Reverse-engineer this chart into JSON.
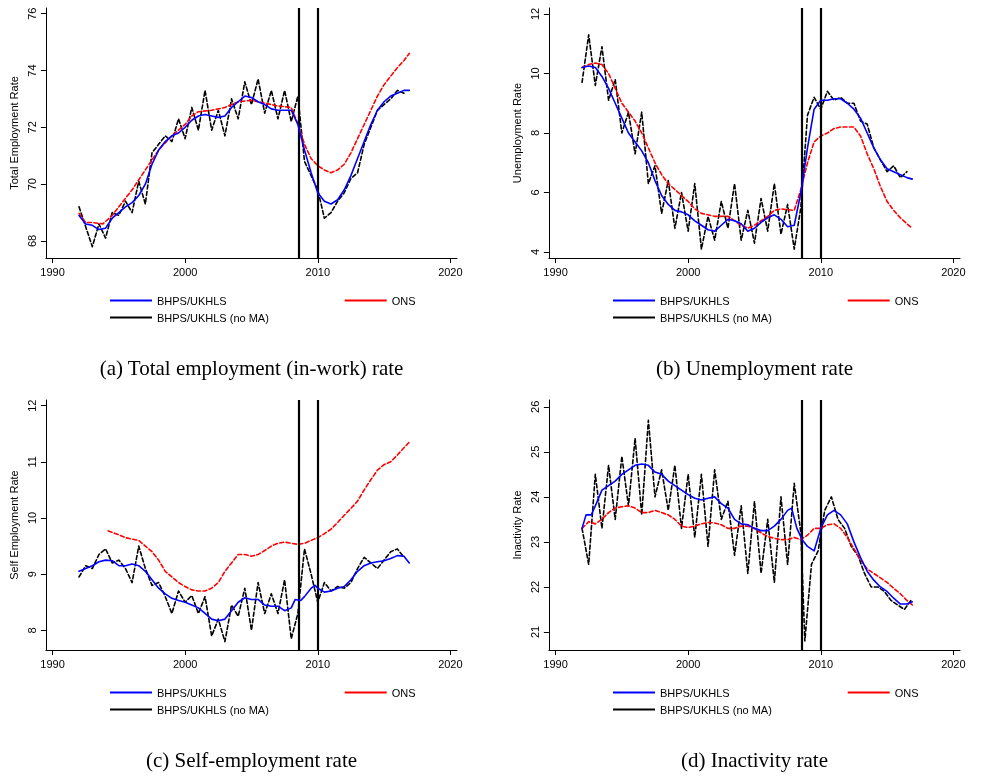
{
  "chart_data": [
    {
      "type": "line",
      "title": "(a) Total employment (in-work) rate",
      "ylabel": "Total Employment Rate",
      "xlim": [
        1989.5,
        2020.5
      ],
      "xticks": [
        1990,
        2000,
        2010,
        2020
      ],
      "ylim": [
        67.4,
        76.2
      ],
      "yticks": [
        68,
        70,
        72,
        74,
        76
      ],
      "grid": false,
      "legend": "bottom",
      "marker": "none",
      "ref_lines": [
        {
          "axis": "x",
          "value": 2008.6,
          "color": "#000000"
        },
        {
          "axis": "x",
          "value": 2010,
          "color": "#000000"
        }
      ],
      "series": [
        {
          "name": "BHPS/UKHLS",
          "color": "#0000ff",
          "line_style": "solid",
          "x": [
            1992,
            1992.5,
            1993,
            1993.5,
            1994,
            1994.5,
            1995,
            1995.5,
            1996,
            1996.5,
            1997,
            1997.5,
            1998,
            1998.5,
            1999,
            1999.5,
            2000,
            2000.5,
            2001,
            2001.5,
            2002,
            2002.5,
            2003,
            2003.5,
            2004,
            2004.5,
            2005,
            2005.5,
            2006,
            2006.5,
            2007,
            2007.5,
            2008,
            2008.5,
            2009,
            2009.5,
            2010,
            2010.5,
            2011,
            2011.5,
            2012,
            2012.5,
            2013,
            2013.5,
            2014,
            2014.5,
            2015,
            2015.5,
            2016,
            2016.5,
            2016.9
          ],
          "values": [
            68.9,
            68.6,
            68.55,
            68.4,
            68.45,
            68.8,
            69.0,
            69.2,
            69.35,
            69.6,
            70.0,
            70.7,
            71.2,
            71.5,
            71.7,
            71.8,
            72.0,
            72.25,
            72.4,
            72.45,
            72.4,
            72.35,
            72.4,
            72.7,
            72.9,
            73.1,
            73.05,
            72.9,
            72.8,
            72.65,
            72.6,
            72.6,
            72.6,
            72.1,
            71.2,
            70.4,
            69.7,
            69.4,
            69.3,
            69.45,
            69.8,
            70.3,
            70.9,
            71.5,
            72.1,
            72.6,
            72.9,
            73.1,
            73.2,
            73.3,
            73.3
          ]
        },
        {
          "name": "ONS",
          "color": "#ff0000",
          "line_style": "dashed",
          "x": [
            1992,
            1992.5,
            1993,
            1993.8,
            1994.5,
            1995,
            1996,
            1997,
            1998,
            1999,
            2000,
            2000.5,
            2001,
            2002,
            2003,
            2004,
            2005,
            2006,
            2007,
            2008,
            2008.6,
            2009,
            2009.5,
            2010,
            2010.5,
            2011,
            2011.5,
            2012,
            2012.5,
            2013,
            2013.5,
            2014,
            2014.5,
            2015,
            2015.5,
            2016,
            2016.5,
            2016.9
          ],
          "values": [
            68.97,
            68.65,
            68.65,
            68.6,
            68.9,
            69.2,
            69.8,
            70.5,
            71.2,
            71.7,
            72.1,
            72.4,
            72.55,
            72.6,
            72.7,
            72.9,
            72.95,
            72.85,
            72.75,
            72.7,
            72.0,
            71.4,
            70.9,
            70.65,
            70.5,
            70.4,
            70.5,
            70.7,
            71.1,
            71.6,
            72.1,
            72.6,
            73.1,
            73.5,
            73.8,
            74.1,
            74.35,
            74.6
          ]
        },
        {
          "name": "BHPS/UKHLS (no MA)",
          "color": "#000000",
          "line_style": "dashed",
          "x": [
            1992,
            1992.5,
            1993,
            1993.5,
            1994,
            1994.5,
            1995,
            1995.5,
            1996,
            1996.5,
            1997,
            1997.5,
            1998,
            1998.5,
            1999,
            1999.5,
            2000,
            2000.5,
            2001,
            2001.5,
            2002,
            2002.5,
            2003,
            2003.5,
            2004,
            2004.5,
            2005,
            2005.5,
            2006,
            2006.5,
            2007,
            2007.5,
            2008,
            2008.5,
            2009,
            2009.5,
            2010,
            2010.5,
            2011,
            2011.5,
            2012,
            2012.5,
            2013,
            2013.5,
            2014,
            2014.5,
            2015,
            2015.5,
            2016,
            2016.5
          ],
          "values": [
            69.2,
            68.5,
            67.8,
            68.6,
            68.1,
            69.0,
            68.9,
            69.4,
            69.0,
            70.1,
            69.3,
            71.1,
            71.4,
            71.7,
            71.5,
            72.3,
            71.6,
            72.7,
            71.9,
            73.3,
            71.9,
            72.6,
            71.7,
            73.0,
            72.3,
            73.6,
            72.8,
            73.7,
            72.5,
            73.3,
            72.3,
            73.3,
            72.2,
            73.1,
            70.8,
            70.3,
            69.8,
            68.8,
            69.0,
            69.4,
            69.7,
            70.2,
            70.4,
            71.4,
            72.0,
            72.6,
            72.8,
            73.0,
            73.3,
            73.2
          ]
        }
      ]
    },
    {
      "type": "line",
      "title": "(b) Unemployment rate",
      "ylabel": "Unemployment Rate",
      "xlim": [
        1989.5,
        2020.5
      ],
      "xticks": [
        1990,
        2000,
        2010,
        2020
      ],
      "ylim": [
        3.8,
        12.2
      ],
      "yticks": [
        4,
        6,
        8,
        10,
        12
      ],
      "grid": false,
      "legend": "bottom",
      "marker": "none",
      "ref_lines": [
        {
          "axis": "x",
          "value": 2008.6,
          "color": "#000000"
        },
        {
          "axis": "x",
          "value": 2010,
          "color": "#000000"
        }
      ],
      "series": [
        {
          "name": "BHPS/UKHLS",
          "color": "#0000ff",
          "line_style": "solid",
          "x": [
            1992,
            1992.5,
            1993,
            1993.5,
            1994,
            1994.5,
            1995,
            1995.5,
            1996,
            1996.5,
            1997,
            1997.5,
            1998,
            1998.5,
            1999,
            1999.5,
            2000,
            2000.5,
            2001,
            2001.5,
            2002,
            2002.5,
            2003,
            2003.5,
            2004,
            2004.5,
            2005,
            2005.5,
            2006,
            2006.5,
            2007,
            2007.5,
            2008,
            2008.5,
            2009,
            2009.5,
            2010,
            2010.5,
            2011,
            2011.5,
            2012,
            2012.5,
            2013,
            2013.5,
            2014,
            2014.5,
            2015,
            2015.5,
            2016,
            2016.5,
            2016.9
          ],
          "values": [
            10.2,
            10.25,
            10.2,
            9.9,
            9.5,
            9.0,
            8.5,
            8.0,
            7.7,
            7.4,
            7.0,
            6.4,
            5.9,
            5.6,
            5.4,
            5.35,
            5.25,
            5.05,
            4.9,
            4.75,
            4.7,
            4.9,
            5.1,
            5.05,
            4.95,
            4.7,
            4.8,
            5.0,
            5.15,
            5.25,
            5.1,
            4.85,
            4.9,
            6.0,
            7.5,
            8.8,
            9.1,
            9.1,
            9.15,
            9.15,
            9.0,
            8.8,
            8.5,
            8.0,
            7.5,
            7.1,
            6.8,
            6.7,
            6.6,
            6.5,
            6.45
          ]
        },
        {
          "name": "ONS",
          "color": "#ff0000",
          "line_style": "dashed",
          "x": [
            1992,
            1992.5,
            1993,
            1993.5,
            1994,
            1994.5,
            1995,
            1995.5,
            1996,
            1996.5,
            1997,
            1997.5,
            1998,
            1998.5,
            1999,
            1999.5,
            2000,
            2000.5,
            2001,
            2002,
            2003,
            2004,
            2004.5,
            2005,
            2006,
            2006.5,
            2007,
            2008,
            2008.5,
            2009,
            2009.5,
            2010,
            2010.5,
            2011,
            2011.5,
            2012,
            2012.5,
            2013,
            2013.5,
            2014,
            2014.5,
            2015,
            2015.5,
            2016,
            2016.5,
            2016.9
          ],
          "values": [
            10.2,
            10.3,
            10.35,
            10.3,
            10.0,
            9.5,
            9.0,
            8.7,
            8.4,
            8.0,
            7.5,
            7.0,
            6.6,
            6.3,
            6.1,
            5.9,
            5.7,
            5.45,
            5.3,
            5.2,
            5.2,
            4.9,
            4.8,
            4.9,
            5.2,
            5.4,
            5.45,
            5.4,
            6.1,
            7.0,
            7.7,
            7.9,
            8.0,
            8.15,
            8.2,
            8.2,
            8.2,
            7.9,
            7.3,
            6.8,
            6.2,
            5.7,
            5.4,
            5.15,
            4.95,
            4.8
          ]
        },
        {
          "name": "BHPS/UKHLS (no MA)",
          "color": "#000000",
          "line_style": "dashed",
          "x": [
            1992,
            1992.5,
            1993,
            1993.5,
            1994,
            1994.5,
            1995,
            1995.5,
            1996,
            1996.5,
            1997,
            1997.5,
            1998,
            1998.5,
            1999,
            1999.5,
            2000,
            2000.5,
            2001,
            2001.5,
            2002,
            2002.5,
            2003,
            2003.5,
            2004,
            2004.5,
            2005,
            2005.5,
            2006,
            2006.5,
            2007,
            2007.5,
            2008,
            2008.5,
            2009,
            2009.5,
            2010,
            2010.5,
            2011,
            2011.5,
            2012,
            2012.5,
            2013,
            2013.5,
            2014,
            2014.5,
            2015,
            2015.5,
            2016,
            2016.5
          ],
          "values": [
            9.7,
            11.3,
            9.6,
            10.9,
            9.1,
            9.8,
            8.0,
            8.7,
            7.3,
            8.7,
            6.3,
            6.9,
            5.3,
            6.4,
            4.8,
            6.0,
            4.7,
            6.3,
            4.1,
            5.2,
            4.4,
            5.7,
            4.8,
            6.3,
            4.4,
            5.4,
            4.3,
            5.8,
            4.7,
            6.3,
            4.6,
            5.6,
            4.1,
            5.5,
            8.6,
            9.2,
            8.8,
            9.4,
            9.1,
            9.2,
            9.0,
            9.0,
            8.4,
            8.3,
            7.5,
            7.1,
            6.7,
            6.9,
            6.5,
            6.7
          ]
        }
      ]
    },
    {
      "type": "line",
      "title": "(c) Self-employment rate",
      "ylabel": "Self Employment Rate",
      "xlim": [
        1989.5,
        2020.5
      ],
      "xticks": [
        1990,
        2000,
        2010,
        2020
      ],
      "ylim": [
        7.65,
        12.1
      ],
      "yticks": [
        8,
        9,
        10,
        11,
        12
      ],
      "grid": false,
      "legend": "bottom",
      "marker": "none",
      "ref_lines": [
        {
          "axis": "x",
          "value": 2008.6,
          "color": "#000000"
        },
        {
          "axis": "x",
          "value": 2010,
          "color": "#000000"
        }
      ],
      "series": [
        {
          "name": "BHPS/UKHLS",
          "color": "#0000ff",
          "line_style": "solid",
          "x": [
            1992,
            1993,
            1993.5,
            1994,
            1994.5,
            1995,
            1995.5,
            1996,
            1996.5,
            1997,
            1997.5,
            1998,
            1998.5,
            1999,
            1999.5,
            2000,
            2000.5,
            2001,
            2001.5,
            2002,
            2002.5,
            2003,
            2003.5,
            2004,
            2004.5,
            2005,
            2005.5,
            2006,
            2006.5,
            2007,
            2007.5,
            2008,
            2008.3,
            2008.7,
            2009,
            2009.5,
            2009.8,
            2010,
            2010.5,
            2011,
            2011.5,
            2012,
            2012.5,
            2013,
            2013.5,
            2014,
            2014.5,
            2015,
            2015.5,
            2016,
            2016.5,
            2016.9
          ],
          "values": [
            9.05,
            9.15,
            9.22,
            9.25,
            9.24,
            9.15,
            9.15,
            9.18,
            9.15,
            9.05,
            8.9,
            8.75,
            8.65,
            8.57,
            8.53,
            8.5,
            8.45,
            8.4,
            8.3,
            8.2,
            8.17,
            8.2,
            8.35,
            8.5,
            8.58,
            8.55,
            8.55,
            8.45,
            8.43,
            8.43,
            8.35,
            8.4,
            8.55,
            8.53,
            8.6,
            8.75,
            8.8,
            8.75,
            8.68,
            8.7,
            8.75,
            8.78,
            8.9,
            9.05,
            9.15,
            9.2,
            9.22,
            9.24,
            9.28,
            9.33,
            9.32,
            9.2
          ]
        },
        {
          "name": "ONS",
          "color": "#ff0000",
          "line_style": "dashed",
          "x": [
            1994.2,
            1995,
            1995.5,
            1996.5,
            1997,
            1997.5,
            1998,
            1998.5,
            1999,
            1999.5,
            2000,
            2000.5,
            2001,
            2001.5,
            2002,
            2002.5,
            2003,
            2003.5,
            2004,
            2004.5,
            2005,
            2005.5,
            2006,
            2006.5,
            2007,
            2007.5,
            2008,
            2008.5,
            2009,
            2009.5,
            2010,
            2010.5,
            2011,
            2011.5,
            2012,
            2012.5,
            2013,
            2013.5,
            2014,
            2014.5,
            2015,
            2015.5,
            2016,
            2016.5,
            2016.9
          ],
          "values": [
            9.77,
            9.7,
            9.65,
            9.6,
            9.5,
            9.4,
            9.25,
            9.05,
            8.95,
            8.85,
            8.78,
            8.72,
            8.7,
            8.7,
            8.75,
            8.85,
            9.05,
            9.2,
            9.35,
            9.35,
            9.32,
            9.35,
            9.42,
            9.5,
            9.55,
            9.57,
            9.55,
            9.53,
            9.55,
            9.6,
            9.65,
            9.72,
            9.8,
            9.92,
            10.05,
            10.17,
            10.3,
            10.5,
            10.68,
            10.85,
            10.95,
            11.0,
            11.12,
            11.25,
            11.35
          ]
        },
        {
          "name": "BHPS/UKHLS (no MA)",
          "color": "#000000",
          "line_style": "dashed",
          "x": [
            1992,
            1992.5,
            1993,
            1993.5,
            1994,
            1994.5,
            1995,
            1995.5,
            1996,
            1996.5,
            1997,
            1997.5,
            1998,
            1998.5,
            1999,
            1999.5,
            2000,
            2000.5,
            2001,
            2001.5,
            2002,
            2002.5,
            2003,
            2003.5,
            2004,
            2004.5,
            2005,
            2005.5,
            2006,
            2006.5,
            2007,
            2007.5,
            2008,
            2008.5,
            2009,
            2009.5,
            2010,
            2010.5,
            2011,
            2011.5,
            2012,
            2012.5,
            2013,
            2013.5,
            2014,
            2014.5,
            2015,
            2015.5,
            2016,
            2016.5
          ],
          "values": [
            8.95,
            9.15,
            9.1,
            9.35,
            9.45,
            9.2,
            9.25,
            9.1,
            8.85,
            9.5,
            9.1,
            8.8,
            8.85,
            8.6,
            8.3,
            8.7,
            8.5,
            8.62,
            8.3,
            8.6,
            7.9,
            8.2,
            7.8,
            8.45,
            8.25,
            8.75,
            8.0,
            8.85,
            8.3,
            8.65,
            8.3,
            8.9,
            7.85,
            8.3,
            9.45,
            9.0,
            8.5,
            8.85,
            8.7,
            8.78,
            8.75,
            8.85,
            9.1,
            9.3,
            9.2,
            9.1,
            9.25,
            9.4,
            9.45,
            9.3
          ]
        }
      ]
    },
    {
      "type": "line",
      "title": "(d) Inactivity rate",
      "ylabel": "Inactivity Rate",
      "xlim": [
        1989.5,
        2020.5
      ],
      "xticks": [
        1990,
        2000,
        2010,
        2020
      ],
      "ylim": [
        20.6,
        26.15
      ],
      "yticks": [
        21,
        22,
        23,
        24,
        25,
        26
      ],
      "grid": false,
      "legend": "bottom",
      "marker": "none",
      "ref_lines": [
        {
          "axis": "x",
          "value": 2008.6,
          "color": "#000000"
        },
        {
          "axis": "x",
          "value": 2010,
          "color": "#000000"
        }
      ],
      "series": [
        {
          "name": "BHPS/UKHLS",
          "color": "#0000ff",
          "line_style": "solid",
          "x": [
            1992,
            1992.3,
            1992.7,
            1993,
            1993.5,
            1994,
            1994.5,
            1995,
            1995.5,
            1996,
            1996.5,
            1997,
            1997.5,
            1998,
            1998.5,
            1999,
            1999.5,
            2000,
            2000.5,
            2001,
            2001.5,
            2002,
            2002.5,
            2003,
            2003.5,
            2004,
            2004.5,
            2005,
            2005.5,
            2006,
            2006.5,
            2007,
            2007.5,
            2007.8,
            2008.2,
            2008.6,
            2009,
            2009.5,
            2010,
            2010.5,
            2011,
            2011.5,
            2012,
            2012.5,
            2013,
            2013.5,
            2014,
            2014.5,
            2015,
            2015.5,
            2016,
            2016.5,
            2016.9
          ],
          "values": [
            23.3,
            23.6,
            23.6,
            23.8,
            24.15,
            24.25,
            24.35,
            24.5,
            24.6,
            24.7,
            24.73,
            24.7,
            24.55,
            24.5,
            24.35,
            24.25,
            24.15,
            24.05,
            23.97,
            23.93,
            23.97,
            24.0,
            23.85,
            23.75,
            23.5,
            23.4,
            23.38,
            23.3,
            23.25,
            23.25,
            23.35,
            23.5,
            23.7,
            23.75,
            23.3,
            23.05,
            22.9,
            22.8,
            23.3,
            23.6,
            23.7,
            23.6,
            23.4,
            23.0,
            22.65,
            22.35,
            22.15,
            22.0,
            21.9,
            21.75,
            21.62,
            21.62,
            21.67
          ]
        },
        {
          "name": "ONS",
          "color": "#ff0000",
          "line_style": "dashed",
          "x": [
            1992,
            1992.5,
            1993,
            1993.5,
            1994,
            1994.5,
            1995,
            1995.5,
            1996,
            1996.5,
            1997,
            1997.5,
            1998,
            1998.5,
            1999,
            1999.5,
            2000,
            2000.5,
            2001,
            2001.5,
            2002,
            2002.5,
            2003,
            2003.5,
            2004,
            2004.5,
            2005,
            2005.5,
            2006,
            2006.5,
            2007,
            2007.5,
            2008,
            2008.5,
            2009,
            2009.5,
            2010,
            2010.5,
            2011,
            2011.5,
            2012,
            2012.5,
            2013,
            2013.5,
            2014,
            2014.5,
            2015,
            2015.5,
            2016,
            2016.5,
            2016.9
          ],
          "values": [
            23.3,
            23.45,
            23.4,
            23.5,
            23.65,
            23.75,
            23.78,
            23.8,
            23.75,
            23.65,
            23.65,
            23.7,
            23.65,
            23.6,
            23.5,
            23.35,
            23.32,
            23.35,
            23.4,
            23.43,
            23.42,
            23.38,
            23.3,
            23.3,
            23.35,
            23.35,
            23.3,
            23.2,
            23.12,
            23.08,
            23.05,
            23.05,
            23.1,
            23.05,
            23.15,
            23.3,
            23.3,
            23.38,
            23.4,
            23.3,
            23.1,
            22.85,
            22.6,
            22.4,
            22.3,
            22.2,
            22.1,
            21.97,
            21.85,
            21.7,
            21.6
          ]
        },
        {
          "name": "BHPS/UKHLS (no MA)",
          "color": "#000000",
          "line_style": "dashed",
          "x": [
            1992,
            1992.5,
            1993,
            1993.5,
            1994,
            1994.5,
            1995,
            1995.5,
            1996,
            1996.5,
            1997,
            1997.5,
            1998,
            1998.5,
            1999,
            1999.5,
            2000,
            2000.5,
            2001,
            2001.5,
            2002,
            2002.5,
            2003,
            2003.5,
            2004,
            2004.5,
            2005,
            2005.5,
            2006,
            2006.5,
            2007,
            2007.5,
            2008,
            2008.5,
            2008.8,
            2009.3,
            2009.8,
            2010.3,
            2010.8,
            2011.3,
            2011.8,
            2012.3,
            2012.8,
            2013.3,
            2013.8,
            2014.3,
            2014.8,
            2015.3,
            2015.8,
            2016.3,
            2016.8
          ],
          "values": [
            23.3,
            22.5,
            24.5,
            23.3,
            24.7,
            23.5,
            24.9,
            23.8,
            25.3,
            23.6,
            25.7,
            24.0,
            24.6,
            23.7,
            24.7,
            23.3,
            24.5,
            23.1,
            24.5,
            22.9,
            24.6,
            23.5,
            23.9,
            22.7,
            23.8,
            22.3,
            23.9,
            22.3,
            23.5,
            22.1,
            24.0,
            22.5,
            24.3,
            23.2,
            20.8,
            22.5,
            22.8,
            23.7,
            24.0,
            23.5,
            23.3,
            22.9,
            22.7,
            22.3,
            22.0,
            22.0,
            21.9,
            21.7,
            21.6,
            21.5,
            21.7
          ]
        }
      ]
    }
  ]
}
